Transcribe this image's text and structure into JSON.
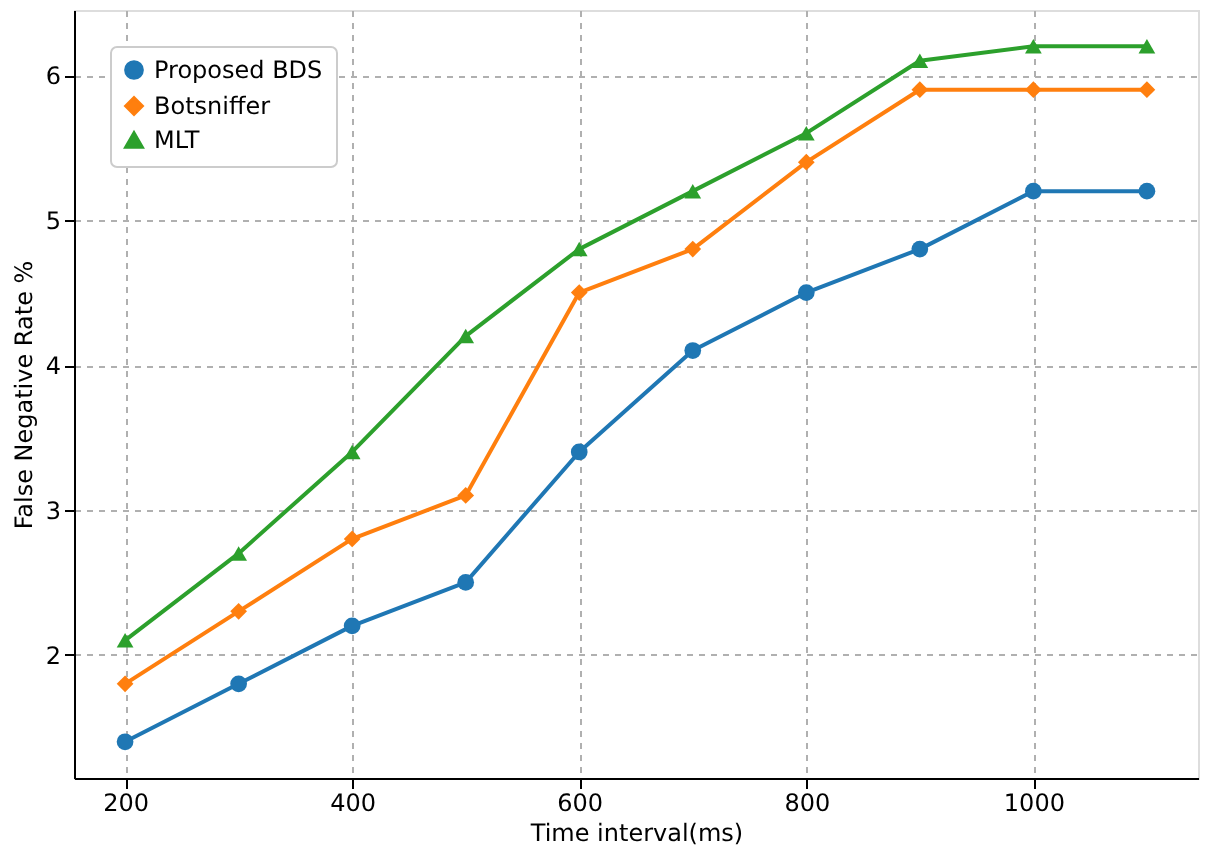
{
  "chart_data": {
    "type": "line",
    "xlabel": "Time interval(ms)",
    "ylabel": "False Negative Rate %",
    "x": [
      200,
      300,
      400,
      500,
      600,
      700,
      800,
      900,
      1000,
      1100
    ],
    "series": [
      {
        "name": "Proposed BDS",
        "color": "#1f77b4",
        "marker": "circle",
        "values": [
          1.4,
          1.8,
          2.2,
          2.5,
          3.4,
          4.1,
          4.5,
          4.8,
          5.2,
          5.2
        ]
      },
      {
        "name": "Botsniffer",
        "color": "#ff7f0e",
        "marker": "diamond",
        "values": [
          1.8,
          2.3,
          2.8,
          3.1,
          4.5,
          4.8,
          5.4,
          5.9,
          5.9,
          5.9
        ]
      },
      {
        "name": "MLT",
        "color": "#2ca02c",
        "marker": "triangle",
        "values": [
          2.1,
          2.7,
          3.4,
          4.2,
          4.8,
          5.2,
          5.6,
          6.1,
          6.2,
          6.2
        ]
      }
    ],
    "xlim": [
      155,
      1145
    ],
    "ylim": [
      1.15,
      6.45
    ],
    "xticks": [
      200,
      400,
      600,
      800,
      1000
    ],
    "yticks": [
      2,
      3,
      4,
      5,
      6
    ],
    "grid": true,
    "line_style": "solid",
    "legend": "top left"
  }
}
